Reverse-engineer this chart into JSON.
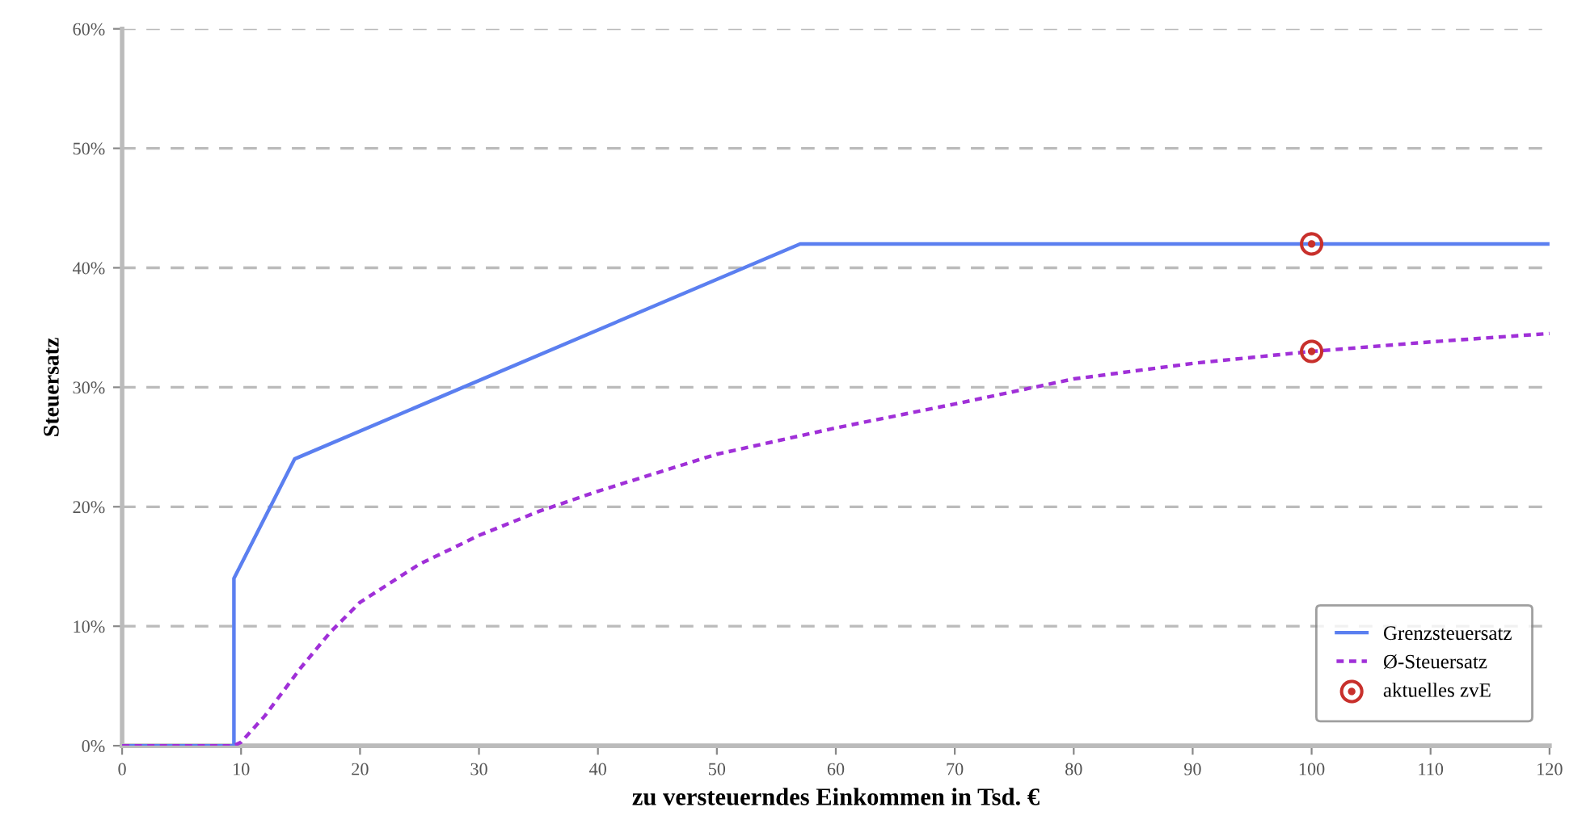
{
  "chart_data": {
    "type": "line",
    "xlabel": "zu versteuerndes Einkommen in Tsd. €",
    "ylabel": "Steuersatz",
    "xlim": [
      0,
      120
    ],
    "xticks": [
      0,
      10,
      20,
      30,
      40,
      50,
      60,
      70,
      80,
      90,
      100,
      110,
      120
    ],
    "ylim": [
      0,
      60
    ],
    "yticks": [
      {
        "value": 0,
        "label": "0%"
      },
      {
        "value": 10,
        "label": "10%"
      },
      {
        "value": 20,
        "label": "20%"
      },
      {
        "value": 30,
        "label": "30%"
      },
      {
        "value": 40,
        "label": "40%"
      },
      {
        "value": 50,
        "label": "50%"
      },
      {
        "value": 60,
        "label": "60%"
      }
    ],
    "grid": "y",
    "legend": "bottom right",
    "series": [
      {
        "name": "Grenzsteuersatz",
        "color": "#5b7ff0",
        "line_style": "solid",
        "marker": "none",
        "x": [
          0,
          9.4,
          9.4,
          14.5,
          57,
          120
        ],
        "values": [
          0,
          0,
          14,
          24,
          42,
          42
        ]
      },
      {
        "name": "Ø-Steuersatz",
        "color": "#a030d8",
        "line_style": "dotted",
        "marker": "none",
        "x": [
          0,
          9.4,
          10,
          12,
          15,
          17.5,
          20,
          25,
          30,
          35,
          40,
          50,
          60,
          70,
          80,
          90,
          100,
          110,
          120
        ],
        "values": [
          0,
          0,
          0.3,
          2.5,
          6.5,
          9.5,
          12,
          15.2,
          17.6,
          19.6,
          21.3,
          24.4,
          26.6,
          28.6,
          30.7,
          32,
          33,
          33.8,
          34.5
        ]
      },
      {
        "name": "aktuelles zvE",
        "type": "scatter",
        "color": "#c8302c",
        "marker": "circle",
        "x": [
          100,
          100
        ],
        "values": [
          42,
          33
        ]
      }
    ]
  }
}
